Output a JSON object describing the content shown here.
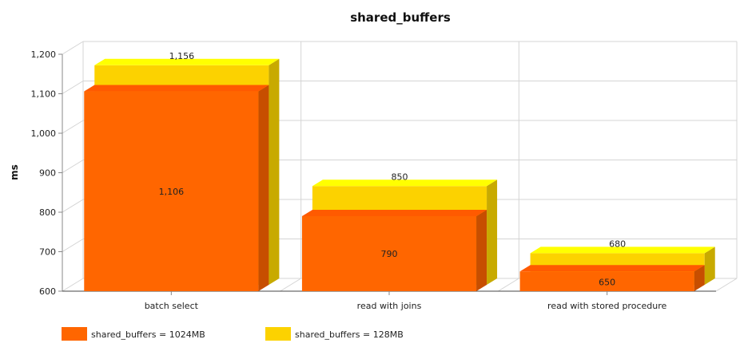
{
  "chart_data": {
    "type": "bar",
    "style": "3d-grouped",
    "title": "shared_buffers",
    "xlabel": "",
    "ylabel": "ms",
    "ylim": [
      600,
      1200
    ],
    "yticks": [
      "600",
      "700",
      "800",
      "900",
      "1,000",
      "1,100",
      "1,200"
    ],
    "ytick_values": [
      600,
      700,
      800,
      900,
      1000,
      1100,
      1200
    ],
    "grid": true,
    "legend_position": "bottom-left",
    "categories": [
      "batch select",
      "read with joins",
      "read with stored procedure"
    ],
    "series": [
      {
        "name": "shared_buffers = 1024MB",
        "values": [
          1106,
          790,
          650
        ],
        "value_labels": [
          "1,106",
          "790",
          "650"
        ],
        "color": "#ff6600",
        "top_color": "#ff5a00",
        "side_color": "#c74e00"
      },
      {
        "name": "shared_buffers = 128MB",
        "values": [
          1156,
          850,
          680
        ],
        "value_labels": [
          "1,156",
          "850",
          "680"
        ],
        "color": "#fcd200",
        "top_color": "#ffff00",
        "side_color": "#c8aa00"
      }
    ]
  }
}
